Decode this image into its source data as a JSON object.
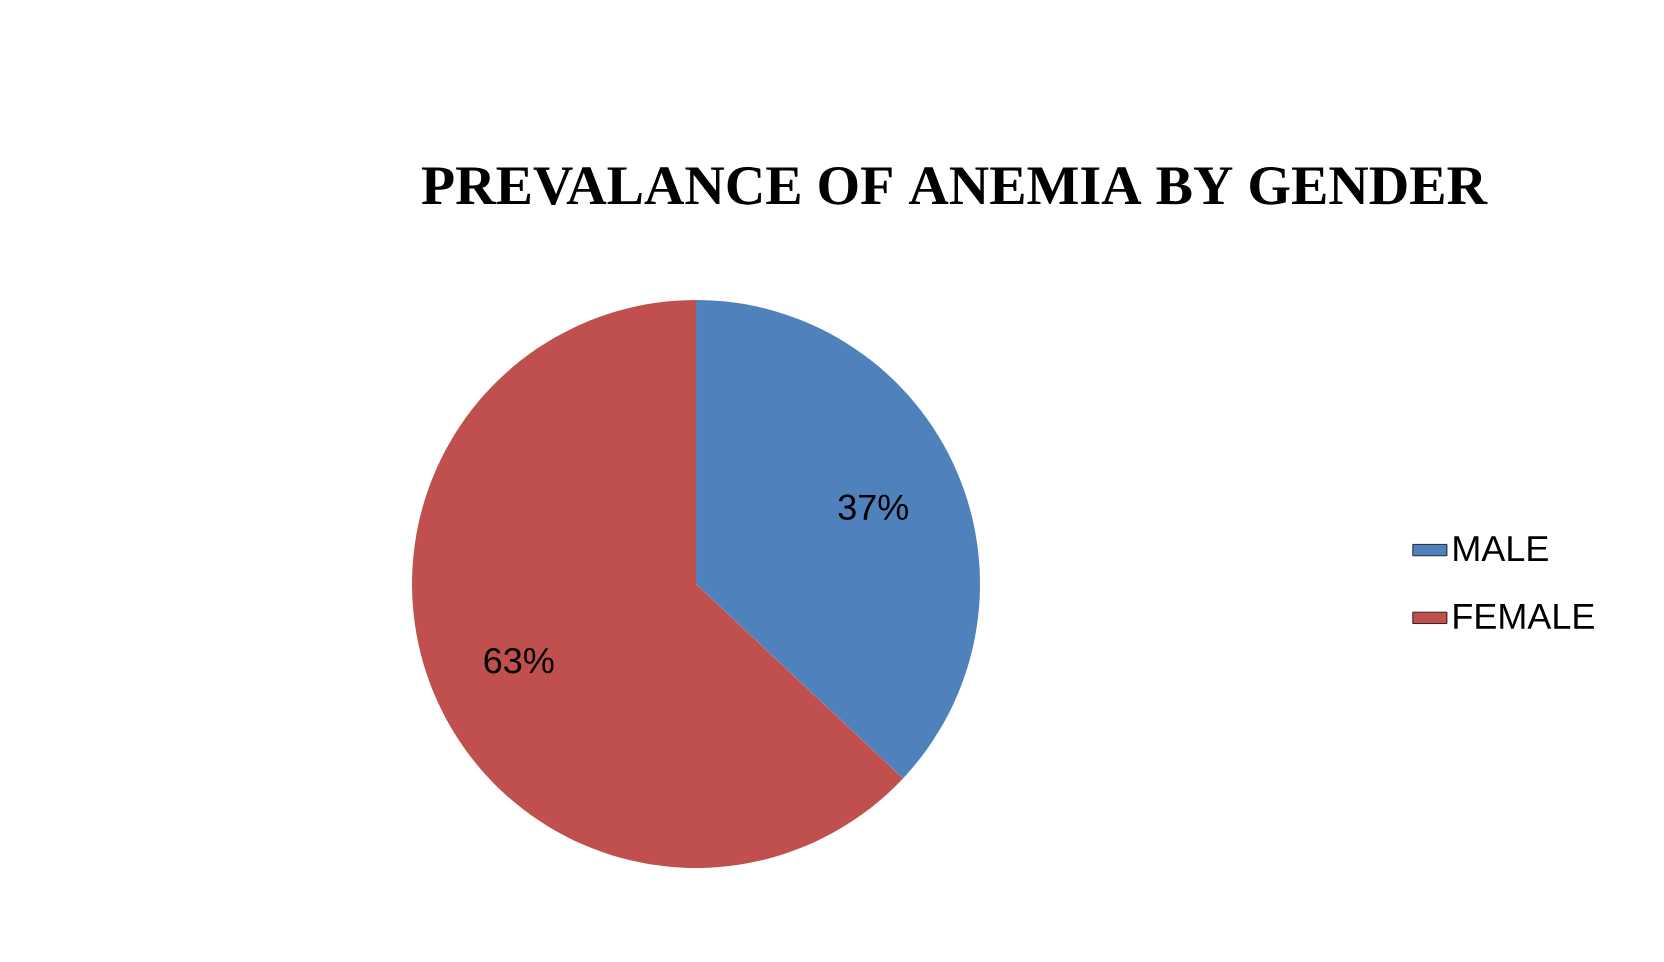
{
  "chart_data": {
    "type": "pie",
    "title": "PREVALANCE OF ANEMIA BY GENDER",
    "categories": [
      "MALE",
      "FEMALE"
    ],
    "values": [
      37,
      63
    ],
    "colors": [
      "#4f81bd",
      "#c0504d"
    ],
    "value_labels": [
      "37%",
      "63%"
    ],
    "legend": "right"
  }
}
